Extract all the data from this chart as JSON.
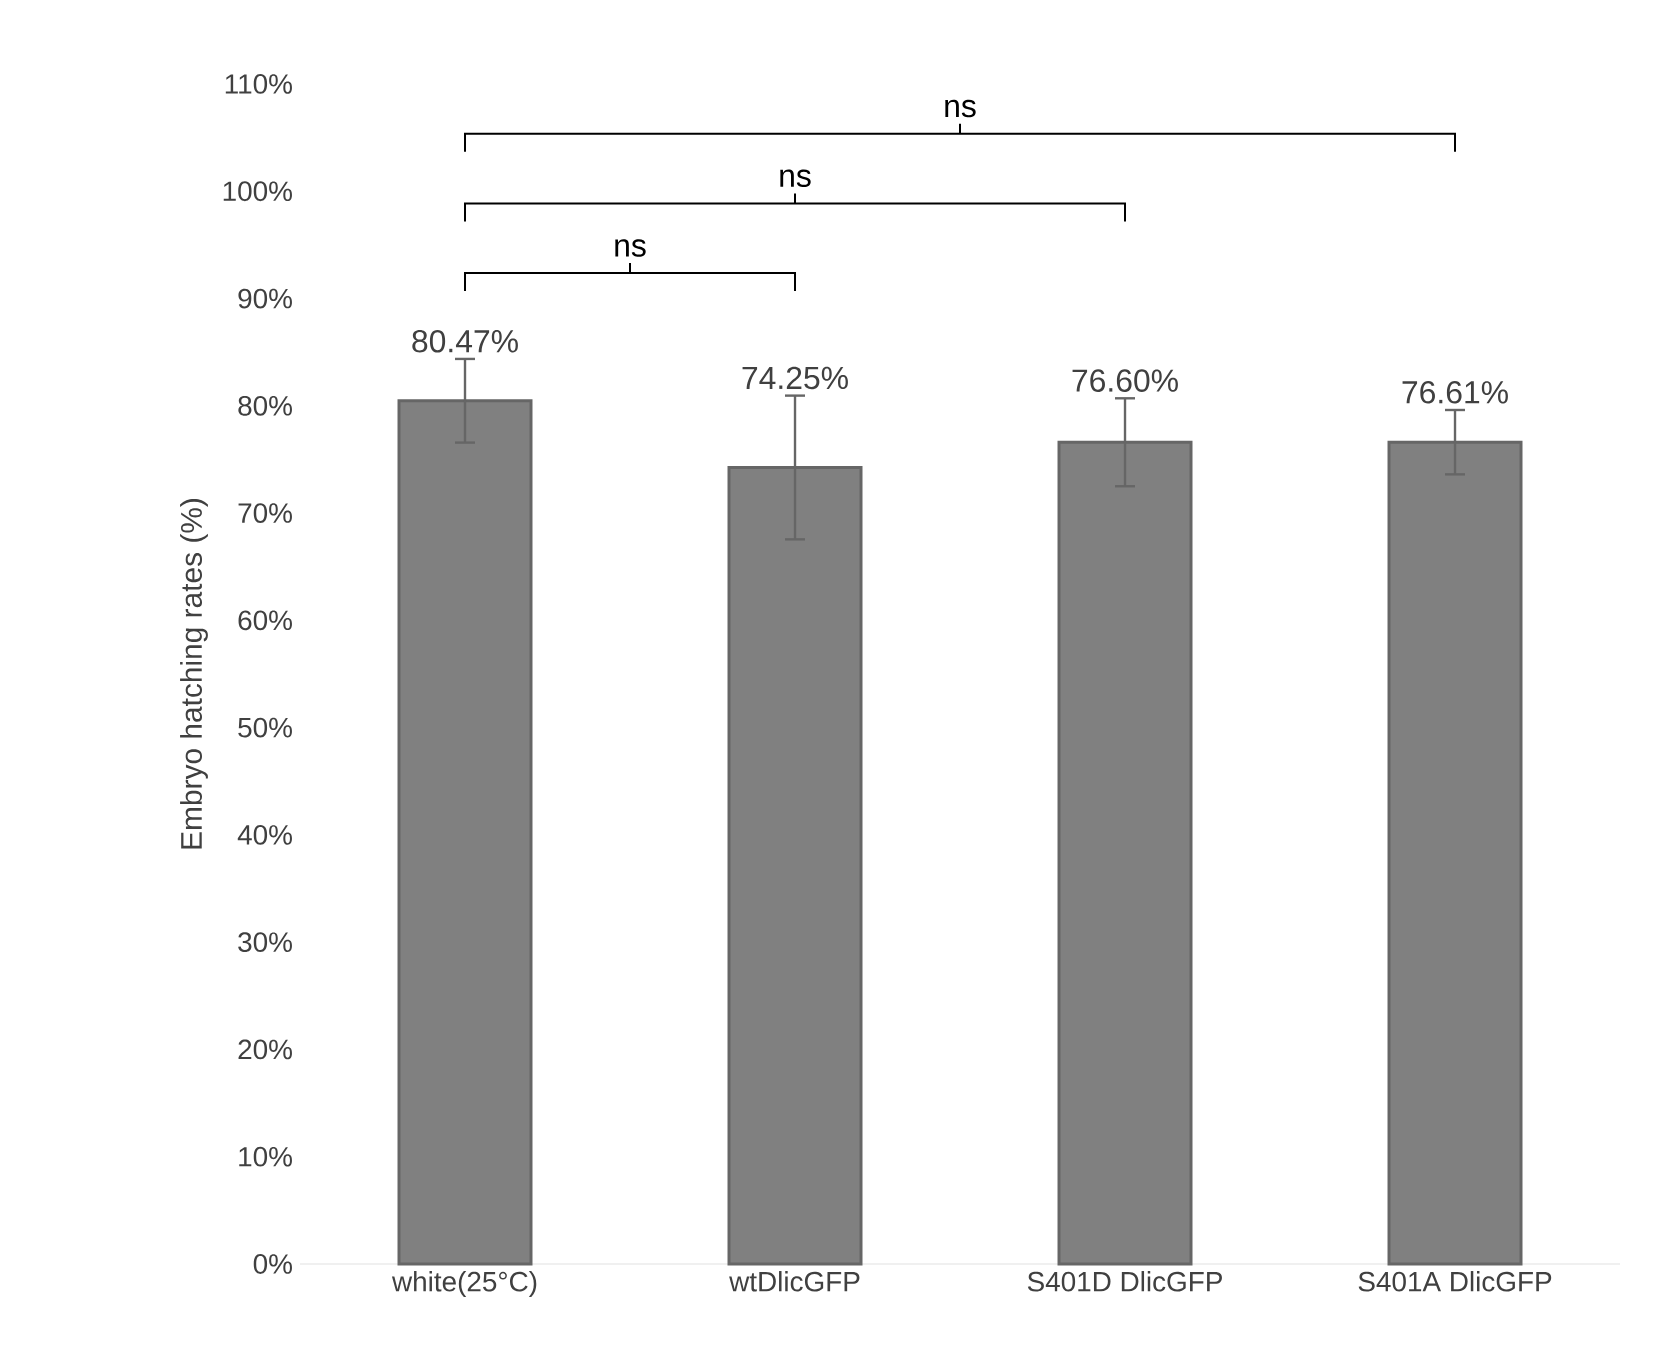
{
  "chart_data": {
    "type": "bar",
    "ylabel": "Embryo hatching rates (%)",
    "categories": [
      "white(25°C)",
      "wtDlicGFP",
      "S401D DlicGFP",
      "S401A DlicGFP"
    ],
    "values": [
      80.47,
      74.25,
      76.6,
      76.61
    ],
    "errors": [
      3.9,
      6.7,
      4.1,
      3.0
    ],
    "value_labels": [
      "80.47%",
      "74.25%",
      "76.60%",
      "76.61%"
    ],
    "color": "#808080",
    "ylim": [
      0,
      110
    ],
    "yticks": [
      {
        "value": 0,
        "label": "0%"
      },
      {
        "value": 10,
        "label": "10%"
      },
      {
        "value": 20,
        "label": "20%"
      },
      {
        "value": 30,
        "label": "30%"
      },
      {
        "value": 40,
        "label": "40%"
      },
      {
        "value": 50,
        "label": "50%"
      },
      {
        "value": 60,
        "label": "60%"
      },
      {
        "value": 70,
        "label": "70%"
      },
      {
        "value": 80,
        "label": "80%"
      },
      {
        "value": 90,
        "label": "90%"
      },
      {
        "value": 100,
        "label": "100%"
      },
      {
        "value": 110,
        "label": "110%"
      }
    ],
    "grid": false,
    "annotations": [
      "ns",
      "ns",
      "ns"
    ]
  }
}
